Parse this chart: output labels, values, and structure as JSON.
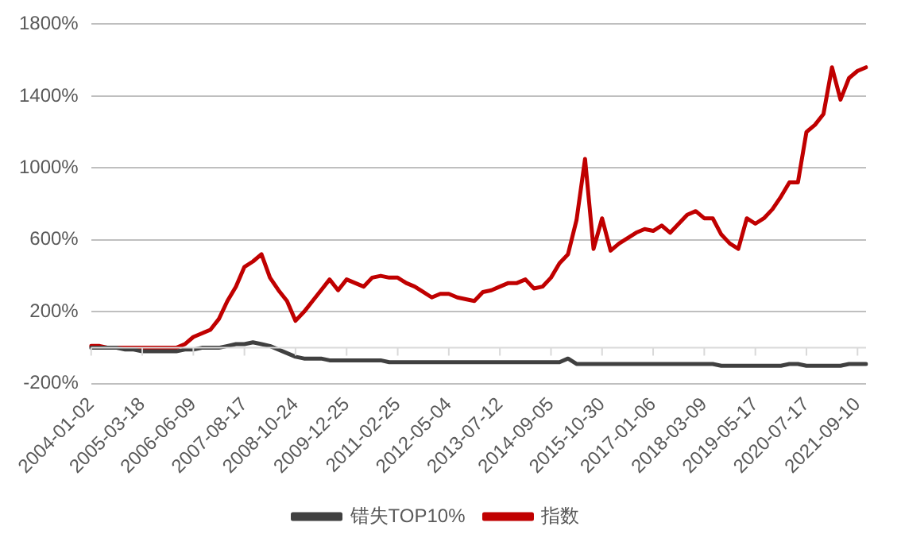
{
  "chart_data": {
    "type": "line",
    "categories": [
      "2004-01-02",
      null,
      null,
      null,
      null,
      null,
      "2005-03-18",
      null,
      null,
      null,
      null,
      null,
      "2006-06-09",
      null,
      null,
      null,
      null,
      null,
      "2007-08-17",
      null,
      null,
      null,
      null,
      null,
      "2008-10-24",
      null,
      null,
      null,
      null,
      null,
      "2009-12-25",
      null,
      null,
      null,
      null,
      null,
      "2011-02-25",
      null,
      null,
      null,
      null,
      null,
      "2012-05-04",
      null,
      null,
      null,
      null,
      null,
      "2013-07-12",
      null,
      null,
      null,
      null,
      null,
      "2014-09-05",
      null,
      null,
      null,
      null,
      null,
      "2015-10-30",
      null,
      null,
      null,
      null,
      null,
      "2017-01-06",
      null,
      null,
      null,
      null,
      null,
      "2018-03-09",
      null,
      null,
      null,
      null,
      null,
      "2019-05-17",
      null,
      null,
      null,
      null,
      null,
      "2020-07-17",
      null,
      null,
      null,
      null,
      null,
      "2021-09-10",
      null
    ],
    "series": [
      {
        "name": "错失TOP10%",
        "color": "#404040",
        "values": [
          0,
          0,
          0,
          0,
          -10,
          -10,
          -20,
          -20,
          -20,
          -20,
          -20,
          -10,
          -10,
          0,
          0,
          0,
          10,
          20,
          20,
          30,
          20,
          10,
          -10,
          -30,
          -50,
          -60,
          -60,
          -60,
          -70,
          -70,
          -70,
          -70,
          -70,
          -70,
          -70,
          -80,
          -80,
          -80,
          -80,
          -80,
          -80,
          -80,
          -80,
          -80,
          -80,
          -80,
          -80,
          -80,
          -80,
          -80,
          -80,
          -80,
          -80,
          -80,
          -80,
          -80,
          -60,
          -90,
          -90,
          -90,
          -90,
          -90,
          -90,
          -90,
          -90,
          -90,
          -90,
          -90,
          -90,
          -90,
          -90,
          -90,
          -90,
          -90,
          -100,
          -100,
          -100,
          -100,
          -100,
          -100,
          -100,
          -100,
          -90,
          -90,
          -100,
          -100,
          -100,
          -100,
          -100,
          -90,
          -90,
          -90
        ]
      },
      {
        "name": "指数",
        "color": "#c00000",
        "values": [
          10,
          10,
          0,
          0,
          0,
          0,
          0,
          0,
          0,
          0,
          0,
          20,
          60,
          80,
          100,
          160,
          260,
          340,
          450,
          480,
          520,
          390,
          320,
          260,
          150,
          200,
          260,
          320,
          380,
          320,
          380,
          360,
          340,
          390,
          400,
          390,
          390,
          360,
          340,
          310,
          280,
          300,
          300,
          280,
          270,
          260,
          310,
          320,
          340,
          360,
          360,
          380,
          330,
          340,
          390,
          470,
          520,
          710,
          1050,
          550,
          720,
          540,
          580,
          610,
          640,
          660,
          650,
          680,
          640,
          690,
          740,
          760,
          720,
          720,
          630,
          580,
          550,
          720,
          690,
          720,
          770,
          840,
          920,
          920,
          1200,
          1240,
          1300,
          1560,
          1380,
          1500,
          1540,
          1560
        ]
      }
    ],
    "ylim": [
      -200,
      1800
    ],
    "yticks": [
      {
        "value": -200,
        "label": "-200%"
      },
      {
        "value": 200,
        "label": "200%"
      },
      {
        "value": 600,
        "label": "600%"
      },
      {
        "value": 1000,
        "label": "1000%"
      },
      {
        "value": 1400,
        "label": "1400%"
      },
      {
        "value": 1800,
        "label": "1800%"
      }
    ],
    "grid": "y",
    "legend": "bottom",
    "marker": "none",
    "line_style": "solid"
  }
}
